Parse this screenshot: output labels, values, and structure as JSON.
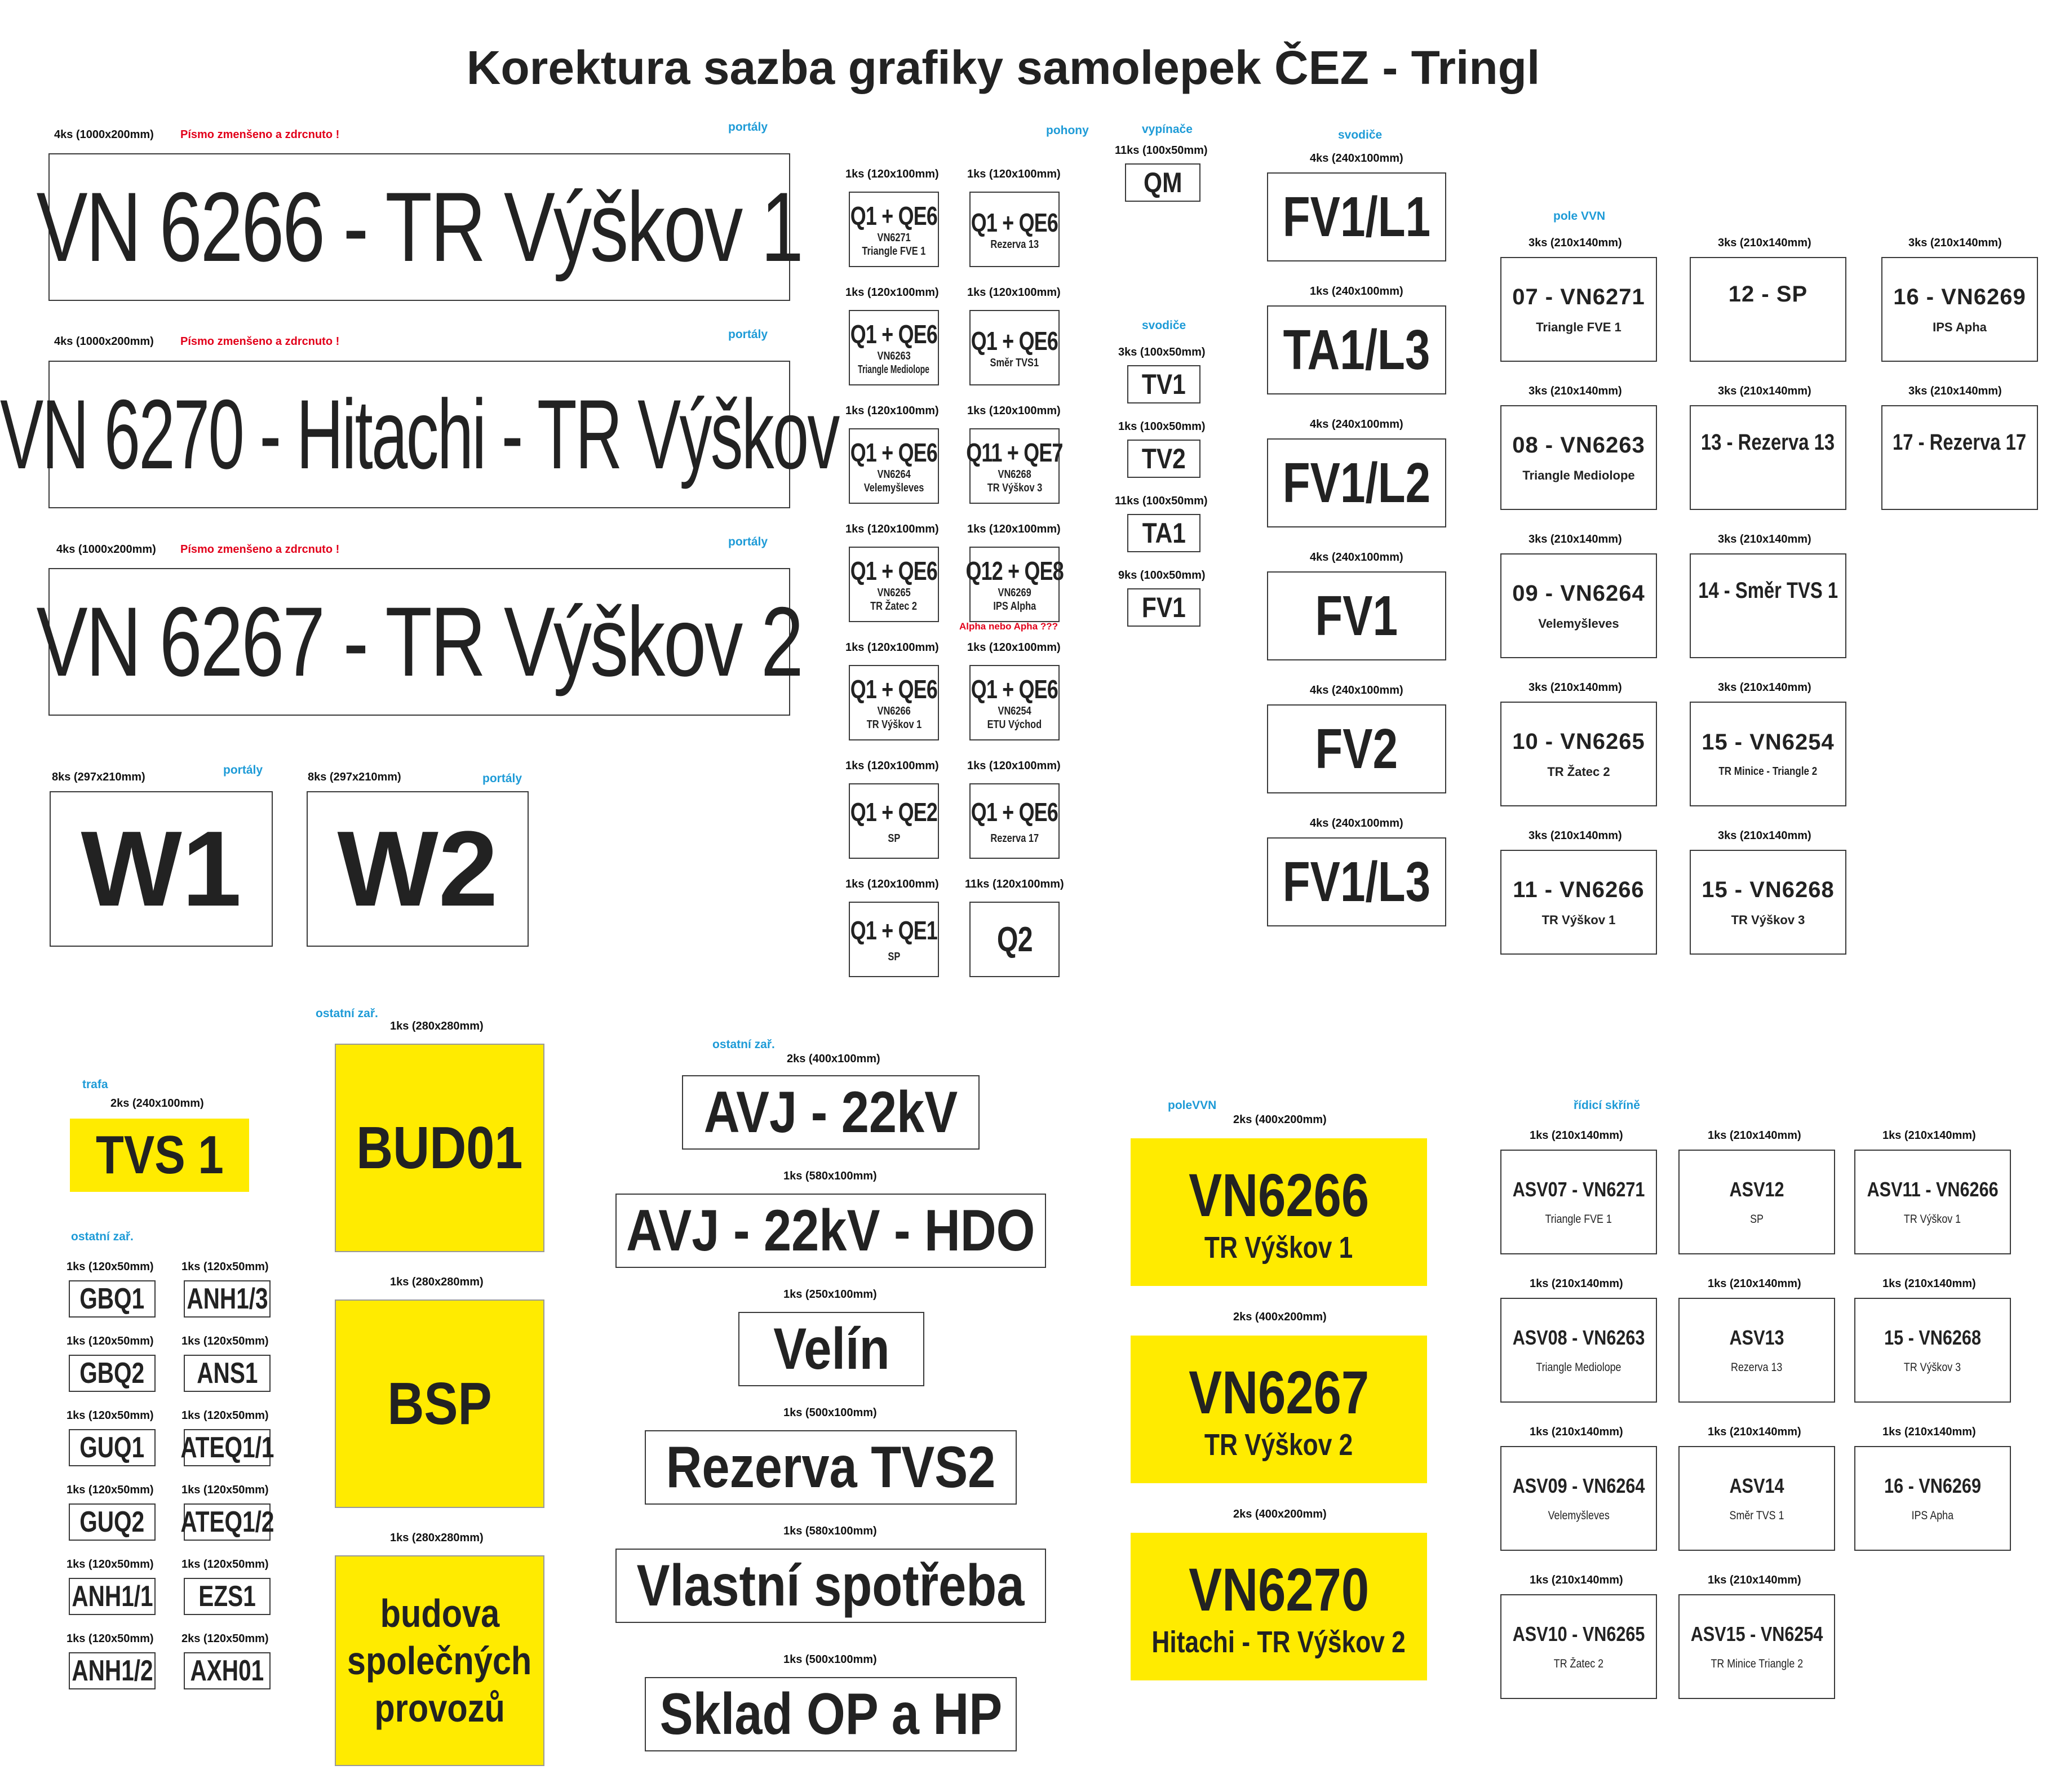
{
  "title": "Korektura sazba grafiky samolepek ČEZ - Tringl",
  "colors": {
    "accent_blue": "#1e9bd7",
    "warning_red": "#e2001a",
    "sticker_yellow": "#ffeb00"
  },
  "portals": [
    {
      "qty": "4ks (1000x200mm)",
      "note": "Písmo zmenšeno a zdrcnuto !",
      "cat": "portály",
      "text": "VN 6266 - TR Výškov 1"
    },
    {
      "qty": "4ks (1000x200mm)",
      "note": "Písmo zmenšeno a zdrcnuto !",
      "cat": "portály",
      "text": "VN 6270 - Hitachi - TR Výškov"
    },
    {
      "qty": "4ks (1000x200mm)",
      "note": "Písmo zmenšeno a zdrcnuto !",
      "cat": "portály",
      "text": "VN 6267 - TR Výškov 2"
    }
  ],
  "w_signs": [
    {
      "qty": "8ks (297x210mm)",
      "cat": "portály",
      "text": "W1"
    },
    {
      "qty": "8ks (297x210mm)",
      "cat": "portály",
      "text": "W2"
    }
  ],
  "pohony": {
    "cat": "pohony",
    "note": "Alpha nebo Apha ???",
    "items": [
      {
        "qty": "1ks (120x100mm)",
        "main": "Q1 + QE6",
        "sub1": "VN6271",
        "sub2": "Triangle FVE 1"
      },
      {
        "qty": "1ks (120x100mm)",
        "main": "Q1 + QE6",
        "sub1": "Rezerva 13",
        "sub2": ""
      },
      {
        "qty": "1ks (120x100mm)",
        "main": "Q1 + QE6",
        "sub1": "VN6263",
        "sub2": "Triangle Mediolope"
      },
      {
        "qty": "1ks (120x100mm)",
        "main": "Q1 + QE6",
        "sub1": "Směr TVS1",
        "sub2": ""
      },
      {
        "qty": "1ks (120x100mm)",
        "main": "Q1 + QE6",
        "sub1": "VN6264",
        "sub2": "Velemyšleves"
      },
      {
        "qty": "1ks (120x100mm)",
        "main": "Q11 + QE7",
        "sub1": "VN6268",
        "sub2": "TR Výškov 3"
      },
      {
        "qty": "1ks (120x100mm)",
        "main": "Q1 + QE6",
        "sub1": "VN6265",
        "sub2": "TR Žatec 2"
      },
      {
        "qty": "1ks (120x100mm)",
        "main": "Q12 + QE8",
        "sub1": "VN6269",
        "sub2": "IPS Alpha"
      },
      {
        "qty": "1ks (120x100mm)",
        "main": "Q1 + QE6",
        "sub1": "VN6266",
        "sub2": "TR Výškov 1"
      },
      {
        "qty": "1ks (120x100mm)",
        "main": "Q1 + QE6",
        "sub1": "VN6254",
        "sub2": "ETU Východ"
      },
      {
        "qty": "1ks (120x100mm)",
        "main": "Q1 + QE2",
        "sub1": "SP",
        "sub2": ""
      },
      {
        "qty": "1ks (120x100mm)",
        "main": "Q1 + QE6",
        "sub1": "Rezerva 17",
        "sub2": ""
      },
      {
        "qty": "1ks (120x100mm)",
        "main": "Q1 + QE1",
        "sub1": "SP",
        "sub2": ""
      },
      {
        "qty": "11ks (120x100mm)",
        "main": "Q2",
        "sub1": "",
        "sub2": ""
      }
    ]
  },
  "vypinace": {
    "cat": "vypínače",
    "qty": "11ks (100x50mm)",
    "text": "QM"
  },
  "svodice_small": {
    "cat": "svodiče",
    "items": [
      {
        "qty": "3ks (100x50mm)",
        "text": "TV1"
      },
      {
        "qty": "1ks (100x50mm)",
        "text": "TV2"
      },
      {
        "qty": "11ks (100x50mm)",
        "text": "TA1"
      },
      {
        "qty": "9ks (100x50mm)",
        "text": "FV1"
      }
    ]
  },
  "svodice_big": {
    "cat": "svodiče",
    "items": [
      {
        "qty": "4ks (240x100mm)",
        "text": "FV1/L1"
      },
      {
        "qty": "1ks (240x100mm)",
        "text": "TA1/L3"
      },
      {
        "qty": "4ks (240x100mm)",
        "text": "FV1/L2"
      },
      {
        "qty": "4ks (240x100mm)",
        "text": "FV1"
      },
      {
        "qty": "4ks (240x100mm)",
        "text": "FV2"
      },
      {
        "qty": "4ks (240x100mm)",
        "text": "FV1/L3"
      }
    ]
  },
  "pole_vvn": {
    "cat": "pole VVN",
    "items": [
      {
        "qty": "3ks (210x140mm)",
        "main": "07 - VN6271",
        "sub": "Triangle FVE 1"
      },
      {
        "qty": "3ks (210x140mm)",
        "main": "12 - SP",
        "sub": ""
      },
      {
        "qty": "3ks (210x140mm)",
        "main": "16 - VN6269",
        "sub": "IPS Apha"
      },
      {
        "qty": "3ks (210x140mm)",
        "main": "08 - VN6263",
        "sub": "Triangle Mediolope"
      },
      {
        "qty": "3ks (210x140mm)",
        "main": "13 - Rezerva 13",
        "sub": ""
      },
      {
        "qty": "3ks (210x140mm)",
        "main": "17 - Rezerva 17",
        "sub": ""
      },
      {
        "qty": "3ks (210x140mm)",
        "main": "09 - VN6264",
        "sub": "Velemyšleves"
      },
      {
        "qty": "3ks (210x140mm)",
        "main": "14 - Směr TVS 1",
        "sub": ""
      },
      {
        "qty": "3ks (210x140mm)",
        "main": "10 - VN6265",
        "sub": "TR Žatec 2"
      },
      {
        "qty": "3ks (210x140mm)",
        "main": "15 - VN6254",
        "sub": "TR Minice - Triangle 2"
      },
      {
        "qty": "3ks (210x140mm)",
        "main": "11 - VN6266",
        "sub": "TR Výškov 1"
      },
      {
        "qty": "3ks (210x140mm)",
        "main": "15 - VN6268",
        "sub": "TR Výškov 3"
      }
    ]
  },
  "trafa": {
    "cat": "trafa",
    "qty": "2ks (240x100mm)",
    "text": "TVS 1"
  },
  "ostatni_small": {
    "cat": "ostatní zař.",
    "items": [
      {
        "qty": "1ks (120x50mm)",
        "text": "GBQ1"
      },
      {
        "qty": "1ks (120x50mm)",
        "text": "ANH1/3"
      },
      {
        "qty": "1ks (120x50mm)",
        "text": "GBQ2"
      },
      {
        "qty": "1ks (120x50mm)",
        "text": "ANS1"
      },
      {
        "qty": "1ks (120x50mm)",
        "text": "GUQ1"
      },
      {
        "qty": "1ks (120x50mm)",
        "text": "ATEQ1/1"
      },
      {
        "qty": "1ks (120x50mm)",
        "text": "GUQ2"
      },
      {
        "qty": "1ks (120x50mm)",
        "text": "ATEQ1/2"
      },
      {
        "qty": "1ks (120x50mm)",
        "text": "ANH1/1"
      },
      {
        "qty": "1ks (120x50mm)",
        "text": "EZS1"
      },
      {
        "qty": "1ks (120x50mm)",
        "text": "ANH1/2"
      },
      {
        "qty": "2ks (120x50mm)",
        "text": "AXH01"
      }
    ]
  },
  "ostatni_yellow": {
    "cat": "ostatní zař.",
    "items": [
      {
        "qty": "1ks (280x280mm)",
        "text": "BUD01"
      },
      {
        "qty": "1ks (280x280mm)",
        "text": "BSP"
      },
      {
        "qty": "1ks (280x280mm)",
        "l1": "budova",
        "l2": "společných",
        "l3": "provozů"
      }
    ]
  },
  "ostatni_mid": {
    "cat": "ostatní zař.",
    "items": [
      {
        "qty": "2ks (400x100mm)",
        "text": "AVJ - 22kV"
      },
      {
        "qty": "1ks (580x100mm)",
        "text": "AVJ - 22kV - HDO"
      },
      {
        "qty": "1ks (250x100mm)",
        "text": "Velín"
      },
      {
        "qty": "1ks (500x100mm)",
        "text": "Rezerva TVS2"
      },
      {
        "qty": "1ks (580x100mm)",
        "text": "Vlastní spotřeba"
      },
      {
        "qty": "1ks (500x100mm)",
        "text": "Sklad OP a HP"
      }
    ]
  },
  "polevvn_yellow": {
    "cat": "poleVVN",
    "items": [
      {
        "qty": "2ks (400x200mm)",
        "main": "VN6266",
        "sub": "TR Výškov 1"
      },
      {
        "qty": "2ks (400x200mm)",
        "main": "VN6267",
        "sub": "TR Výškov 2"
      },
      {
        "qty": "2ks (400x200mm)",
        "main": "VN6270",
        "sub": "Hitachi - TR Výškov 2"
      }
    ]
  },
  "ridici": {
    "cat": "řídicí skříně",
    "items": [
      {
        "qty": "1ks (210x140mm)",
        "main": "ASV07 - VN6271",
        "sub": "Triangle FVE 1"
      },
      {
        "qty": "1ks (210x140mm)",
        "main": "ASV12",
        "sub": "SP"
      },
      {
        "qty": "1ks (210x140mm)",
        "main": "ASV11 - VN6266",
        "sub": "TR Výškov 1"
      },
      {
        "qty": "1ks (210x140mm)",
        "main": "ASV08 - VN6263",
        "sub": "Triangle Mediolope"
      },
      {
        "qty": "1ks (210x140mm)",
        "main": "ASV13",
        "sub": "Rezerva 13"
      },
      {
        "qty": "1ks (210x140mm)",
        "main": "15 - VN6268",
        "sub": "TR Výškov 3"
      },
      {
        "qty": "1ks (210x140mm)",
        "main": "ASV09 - VN6264",
        "sub": "Velemyšleves"
      },
      {
        "qty": "1ks (210x140mm)",
        "main": "ASV14",
        "sub": "Směr TVS 1"
      },
      {
        "qty": "1ks (210x140mm)",
        "main": "16 - VN6269",
        "sub": "IPS Apha"
      },
      {
        "qty": "1ks (210x140mm)",
        "main": "ASV10 - VN6265",
        "sub": "TR Žatec 2"
      },
      {
        "qty": "1ks (210x140mm)",
        "main": "ASV15 - VN6254",
        "sub": "TR Minice Triangle 2"
      }
    ]
  }
}
